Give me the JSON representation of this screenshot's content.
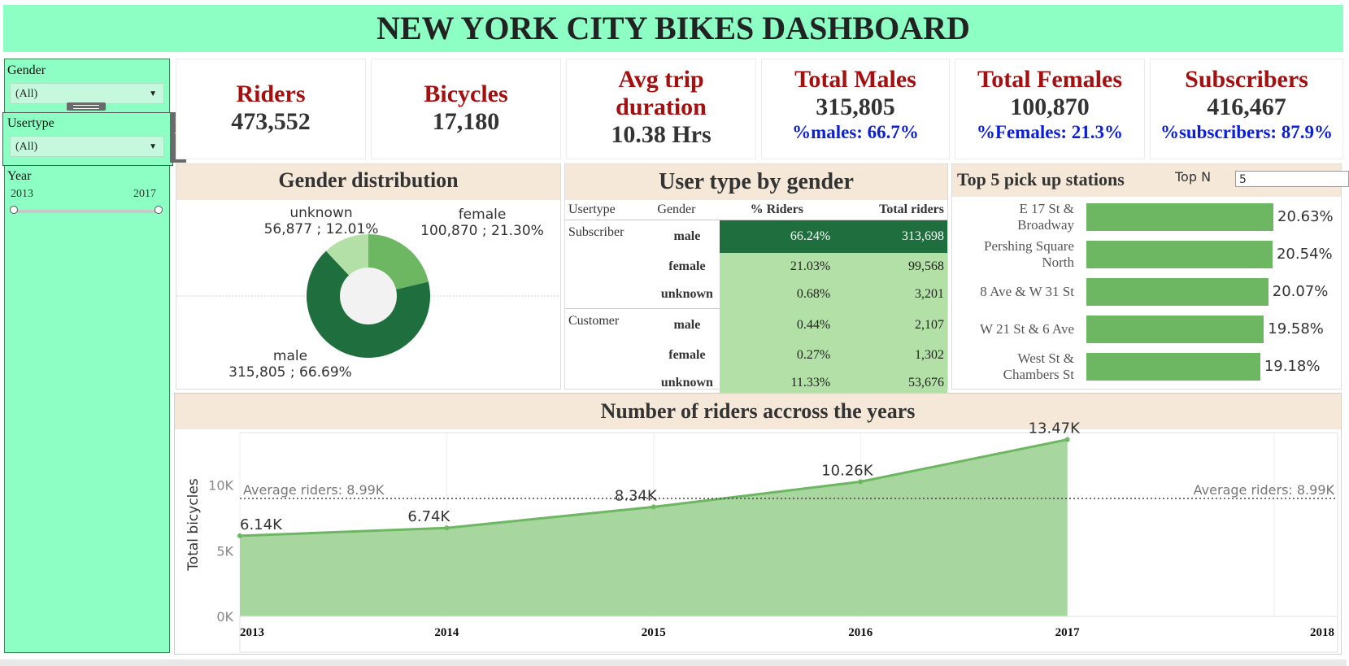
{
  "title": "NEW YORK CITY BIKES DASHBOARD",
  "filters": {
    "gender": {
      "label": "Gender",
      "value": "(All)"
    },
    "usertype": {
      "label": "Usertype",
      "value": "(All)"
    },
    "year": {
      "label": "Year",
      "min": "2013",
      "max": "2017"
    }
  },
  "kpis": [
    {
      "title": "Riders",
      "value": "473,552",
      "pct": ""
    },
    {
      "title": "Bicycles",
      "value": "17,180",
      "pct": ""
    },
    {
      "title": "Avg trip duration",
      "title1": "Avg trip",
      "title2": "duration",
      "value": "10.38 Hrs",
      "pct": ""
    },
    {
      "title": "Total Males",
      "value": "315,805",
      "pct": "%males: 66.7%"
    },
    {
      "title": "Total Females",
      "value": "100,870",
      "pct": "%Females: 21.3%"
    },
    {
      "title": "Subscribers",
      "value": "416,467",
      "pct": "%subscribers: 87.9%"
    }
  ],
  "gender_distribution": {
    "title": "Gender distribution",
    "slices": [
      {
        "name": "female",
        "label": "100,870 ; 21.30%",
        "value": 21.3,
        "color": "#6db662"
      },
      {
        "name": "male",
        "label": "315,805 ; 66.69%",
        "value": 66.69,
        "color": "#1f6f3e"
      },
      {
        "name": "unknown",
        "label": "56,877 ; 12.01%",
        "value": 12.01,
        "color": "#b2e0a6"
      }
    ]
  },
  "user_type": {
    "title": "User type by gender",
    "headers": [
      "Usertype",
      "Gender",
      "% Riders",
      "Total riders"
    ],
    "rows": [
      {
        "usertype": "Subscriber",
        "gender": "male",
        "pct": "66.24%",
        "total": "313,698",
        "dark": true
      },
      {
        "usertype": "",
        "gender": "female",
        "pct": "21.03%",
        "total": "99,568",
        "dark": false
      },
      {
        "usertype": "",
        "gender": "unknown",
        "pct": "0.68%",
        "total": "3,201",
        "dark": false
      },
      {
        "usertype": "Customer",
        "gender": "male",
        "pct": "0.44%",
        "total": "2,107",
        "dark": false
      },
      {
        "usertype": "",
        "gender": "female",
        "pct": "0.27%",
        "total": "1,302",
        "dark": false
      },
      {
        "usertype": "",
        "gender": "unknown",
        "pct": "11.33%",
        "total": "53,676",
        "dark": false
      }
    ]
  },
  "top_stations": {
    "title": "Top 5 pick up stations",
    "topn_label": "Top N",
    "topn_value": "5",
    "stations": [
      {
        "line1": "E 17 St &",
        "line2": "Broadway",
        "value": 20.63,
        "label": "20.63%"
      },
      {
        "line1": "Pershing Square",
        "line2": "North",
        "value": 20.54,
        "label": "20.54%"
      },
      {
        "line1": "8 Ave & W 31 St",
        "line2": "",
        "value": 20.07,
        "label": "20.07%"
      },
      {
        "line1": "W 21 St & 6 Ave",
        "line2": "",
        "value": 19.58,
        "label": "19.58%"
      },
      {
        "line1": "West St &",
        "line2": "Chambers St",
        "value": 19.18,
        "label": "19.18%"
      }
    ]
  },
  "chart_data": {
    "type": "area",
    "title": "Number of riders accross the years",
    "ylabel": "Total bicycles",
    "x": [
      "2013",
      "2014",
      "2015",
      "2016",
      "2017"
    ],
    "x_ticks": [
      "2013",
      "2014",
      "2015",
      "2016",
      "2017",
      "2018"
    ],
    "values": [
      6.14,
      6.74,
      8.34,
      10.26,
      13.47
    ],
    "labels": [
      "6.14K",
      "6.74K",
      "8.34K",
      "10.26K",
      "13.47K"
    ],
    "y_ticks": [
      "0K",
      "5K",
      "10K"
    ],
    "ylim": [
      0,
      14
    ],
    "reference_line": {
      "value": 8.99,
      "label": "Average riders: 8.99K"
    },
    "fill_color": "#9dd193",
    "line_color": "#6db662"
  }
}
